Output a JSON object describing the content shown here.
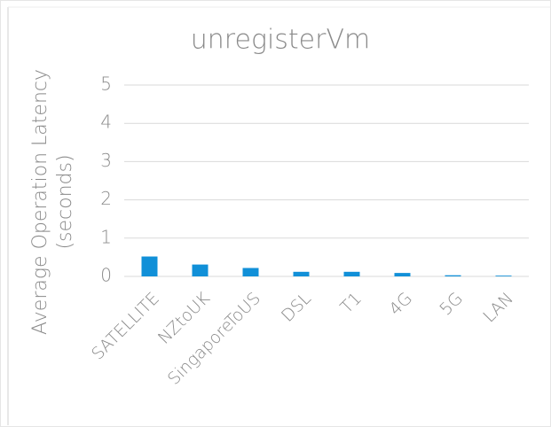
{
  "chart_data": {
    "type": "bar",
    "title": "unregisterVm",
    "ylabel": [
      "Average Operation Latency",
      "(seconds)"
    ],
    "categories": [
      "SATELLITE",
      "NZtoUK",
      "SingaporeToUS",
      "DSL",
      "T1",
      "4G",
      "5G",
      "LAN"
    ],
    "values": [
      0.52,
      0.31,
      0.22,
      0.12,
      0.12,
      0.09,
      0.03,
      0.02
    ],
    "color": "#1190d8",
    "ylim": [
      0,
      5
    ],
    "yticks": [
      0,
      1,
      2,
      3,
      4,
      5
    ],
    "grid": true
  }
}
